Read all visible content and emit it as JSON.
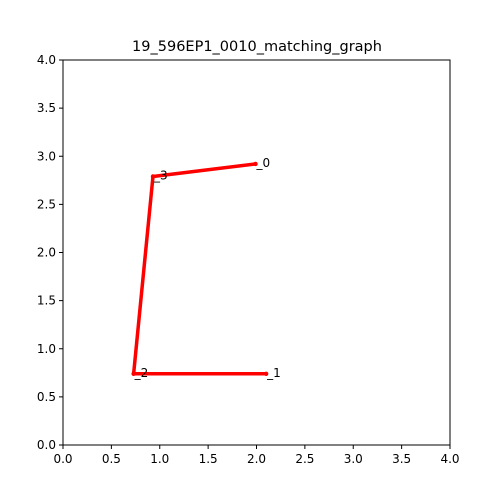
{
  "chart_data": {
    "type": "line",
    "title": "19_596EP1_0010_matching_graph",
    "xlabel": "",
    "ylabel": "",
    "xlim": [
      0.0,
      4.0
    ],
    "ylim": [
      0.0,
      4.0
    ],
    "grid": false,
    "xticks": [
      0.0,
      0.5,
      1.0,
      1.5,
      2.0,
      2.5,
      3.0,
      3.5,
      4.0
    ],
    "yticks": [
      0.0,
      0.5,
      1.0,
      1.5,
      2.0,
      2.5,
      3.0,
      3.5,
      4.0
    ],
    "xtick_labels": [
      "0.0",
      "0.5",
      "1.0",
      "1.5",
      "2.0",
      "2.5",
      "3.0",
      "3.5",
      "4.0"
    ],
    "ytick_labels": [
      "0.0",
      "0.5",
      "1.0",
      "1.5",
      "2.0",
      "2.5",
      "3.0",
      "3.5",
      "4.0"
    ],
    "edge_color": "#ff0000",
    "nodes": [
      {
        "id": "_0",
        "x": 1.99,
        "y": 2.92
      },
      {
        "id": "_1",
        "x": 2.1,
        "y": 0.74
      },
      {
        "id": "_2",
        "x": 0.73,
        "y": 0.74
      },
      {
        "id": "_3",
        "x": 0.93,
        "y": 2.79
      }
    ],
    "edges": [
      [
        "_0",
        "_3"
      ],
      [
        "_3",
        "_2"
      ],
      [
        "_2",
        "_1"
      ]
    ]
  }
}
